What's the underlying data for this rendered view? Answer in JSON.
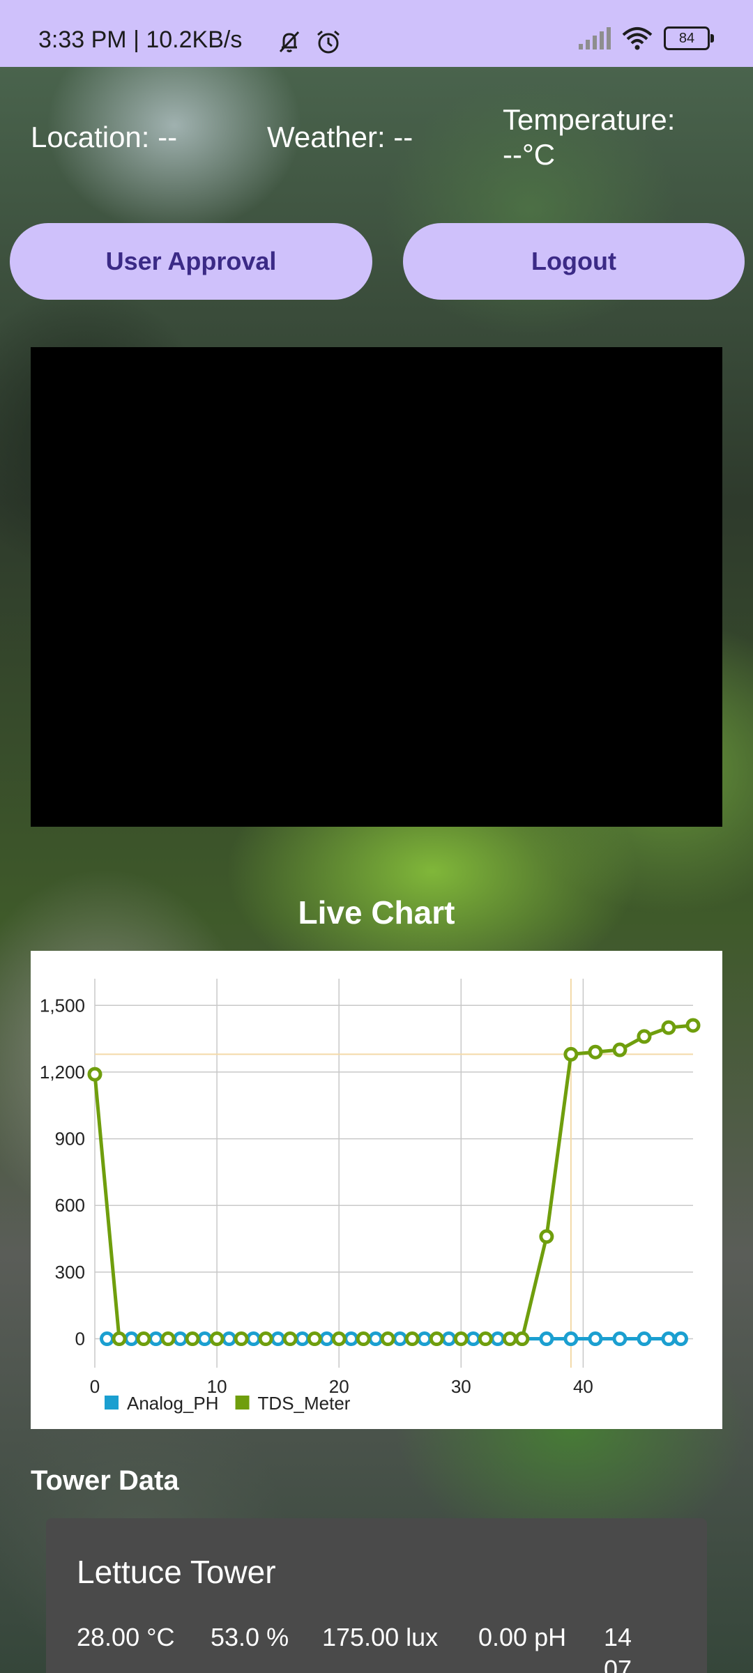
{
  "status_bar": {
    "time_and_speed": "3:33 PM | 10.2KB/s",
    "battery_level": "84",
    "icons": [
      "mute-bell-icon",
      "alarm-icon",
      "signal-icon",
      "wifi-icon",
      "battery-icon"
    ]
  },
  "header": {
    "location": "Location: --",
    "weather": "Weather: --",
    "temperature_line1": "Temperature:",
    "temperature_line2": "--°C"
  },
  "buttons": {
    "user_approval": "User Approval",
    "logout": "Logout"
  },
  "chart_section": {
    "title": "Live Chart"
  },
  "chart_data": {
    "type": "line",
    "title": "",
    "xlabel": "",
    "ylabel": "",
    "xlim": [
      0,
      49
    ],
    "ylim": [
      -130,
      1620
    ],
    "x_ticks": [
      0,
      10,
      20,
      30,
      40
    ],
    "y_ticks": [
      0,
      300,
      600,
      900,
      1200,
      1500
    ],
    "x_tick_labels": [
      "0",
      "10",
      "20",
      "30",
      "40"
    ],
    "y_tick_labels": [
      "0",
      "300",
      "600",
      "900",
      "1,200",
      "1,500"
    ],
    "grid": true,
    "legend_position": "bottom-left",
    "highlight": {
      "x": 39,
      "y": 1280
    },
    "series": [
      {
        "name": "Analog_PH",
        "color": "#1b9fd0",
        "points": [
          [
            1,
            0
          ],
          [
            3,
            0
          ],
          [
            5,
            0
          ],
          [
            7,
            0
          ],
          [
            9,
            0
          ],
          [
            11,
            0
          ],
          [
            13,
            0
          ],
          [
            15,
            0
          ],
          [
            17,
            0
          ],
          [
            19,
            0
          ],
          [
            21,
            0
          ],
          [
            23,
            0
          ],
          [
            25,
            0
          ],
          [
            27,
            0
          ],
          [
            29,
            0
          ],
          [
            31,
            0
          ],
          [
            33,
            0
          ],
          [
            35,
            0
          ],
          [
            37,
            0
          ],
          [
            39,
            0
          ],
          [
            41,
            0
          ],
          [
            43,
            0
          ],
          [
            45,
            0
          ],
          [
            47,
            0
          ],
          [
            48,
            0
          ]
        ]
      },
      {
        "name": "TDS_Meter",
        "color": "#6f9e0d",
        "points": [
          [
            0,
            1190
          ],
          [
            2,
            0
          ],
          [
            4,
            0
          ],
          [
            6,
            0
          ],
          [
            8,
            0
          ],
          [
            10,
            0
          ],
          [
            12,
            0
          ],
          [
            14,
            0
          ],
          [
            16,
            0
          ],
          [
            18,
            0
          ],
          [
            20,
            0
          ],
          [
            22,
            0
          ],
          [
            24,
            0
          ],
          [
            26,
            0
          ],
          [
            28,
            0
          ],
          [
            30,
            0
          ],
          [
            32,
            0
          ],
          [
            34,
            0
          ],
          [
            35,
            0
          ],
          [
            37,
            460
          ],
          [
            39,
            1280
          ],
          [
            41,
            1290
          ],
          [
            43,
            1300
          ],
          [
            45,
            1360
          ],
          [
            47,
            1400
          ],
          [
            49,
            1410
          ]
        ]
      }
    ]
  },
  "tower_section": {
    "title": "Tower Data",
    "tower": {
      "name": "Lettuce Tower",
      "temperature": "28.00 °C",
      "humidity": "53.0 %",
      "light": "175.00 lux",
      "ph": "0.00 pH",
      "time_line1": "14",
      "time_line2": "07"
    }
  }
}
